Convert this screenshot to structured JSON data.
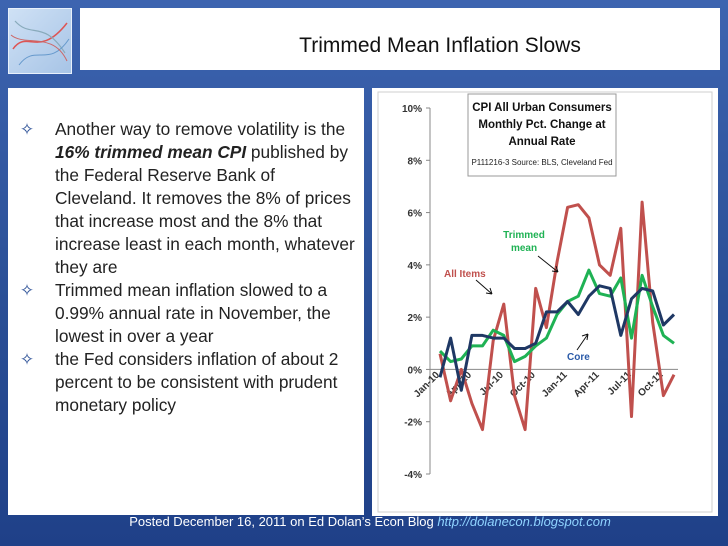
{
  "slide": {
    "title": "Trimmed Mean Inflation Slows",
    "bullets": [
      {
        "pre": "Another way to remove volatility is the ",
        "emph": "16% trimmed mean CPI",
        "post": " published by the Federal Reserve Bank of Cleveland. It removes the 8% of prices that increase most and the 8% that increase least in each month, whatever they are"
      },
      {
        "text": "Trimmed mean inflation slowed to a 0.99% annual rate in November, the lowest in over a year"
      },
      {
        "text": "the Fed considers inflation of about 2 percent to be consistent with prudent monetary policy"
      }
    ],
    "footer_text": "Posted December 16, 2011 on Ed Dolan’s Econ Blog ",
    "footer_url": "http://dolanecon.blogspot.com"
  },
  "colors": {
    "background": "#2a4f96",
    "all_items": "#c0504d",
    "trimmed_mean": "#1fb254",
    "core": "#1f3864"
  },
  "chart_data": {
    "type": "line",
    "title_lines": [
      "CPI All Urban Consumers",
      "Monthly Pct. Change at",
      "Annual Rate"
    ],
    "source": "P111216-3 Source: BLS, Cleveland Fed",
    "x": [
      "Jan-10",
      "Feb-10",
      "Mar-10",
      "Apr-10",
      "May-10",
      "Jun-10",
      "Jul-10",
      "Aug-10",
      "Sep-10",
      "Oct-10",
      "Nov-10",
      "Dec-10",
      "Jan-11",
      "Feb-11",
      "Mar-11",
      "Apr-11",
      "May-11",
      "Jun-11",
      "Jul-11",
      "Aug-11",
      "Sep-11",
      "Oct-11",
      "Nov-11"
    ],
    "x_tick_labels": [
      "Jan-10",
      "Apr-10",
      "Jul-10",
      "Oct-10",
      "Jan-11",
      "Apr-11",
      "Jul-11",
      "Oct-11"
    ],
    "x_tick_index": [
      0,
      3,
      6,
      9,
      12,
      15,
      18,
      21
    ],
    "y_ticks": [
      -4,
      -2,
      0,
      2,
      4,
      6,
      8,
      10
    ],
    "y_tick_labels": [
      "-4%",
      "-2%",
      "0%",
      "2%",
      "4%",
      "6%",
      "8%",
      "10%"
    ],
    "ylim": [
      -4,
      10
    ],
    "series": [
      {
        "name": "All Items",
        "color": "#c0504d",
        "values": [
          0.6,
          -1.2,
          0.0,
          -1.3,
          -2.3,
          1.1,
          2.5,
          -1.0,
          -2.3,
          3.1,
          1.6,
          4.1,
          6.2,
          6.3,
          5.8,
          4.0,
          3.6,
          5.4,
          -1.8,
          6.4,
          1.8,
          -1.0,
          -0.2
        ]
      },
      {
        "name": "Trimmed mean",
        "color": "#1fb254",
        "values": [
          0.7,
          0.3,
          0.4,
          0.9,
          0.9,
          1.5,
          1.3,
          0.3,
          0.5,
          0.9,
          1.2,
          2.1,
          2.6,
          2.8,
          3.8,
          2.9,
          2.8,
          3.5,
          1.2,
          3.6,
          2.4,
          1.3,
          1.0
        ]
      },
      {
        "name": "Core",
        "color": "#1f3864",
        "values": [
          -0.3,
          1.2,
          -0.8,
          1.3,
          1.3,
          1.2,
          1.2,
          0.8,
          0.8,
          1.0,
          2.2,
          2.2,
          2.6,
          2.1,
          2.8,
          3.2,
          3.1,
          1.3,
          2.7,
          3.1,
          3.0,
          1.7,
          2.1
        ]
      }
    ],
    "annotations": {
      "all_items": "All Items",
      "trimmed": [
        "Trimmed",
        "mean"
      ],
      "core": "Core"
    },
    "grid": false
  }
}
